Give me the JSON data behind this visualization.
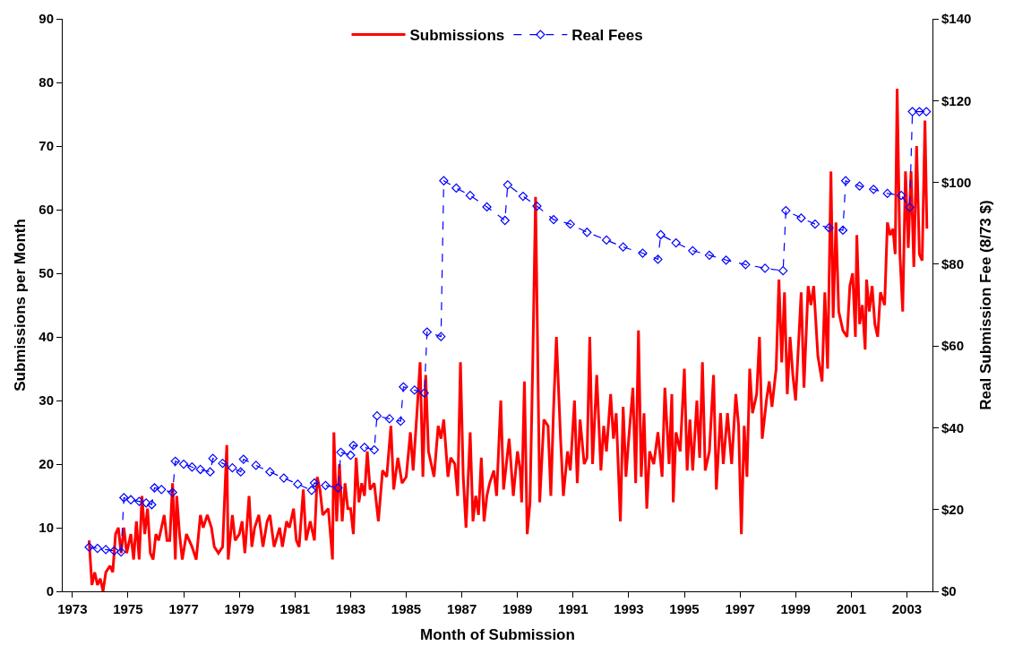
{
  "chart_data": {
    "type": "line",
    "xlabel": "Month of Submission",
    "ylabel": "Submissions per Month",
    "y2label": "Real Submission Fee (8/73 $)",
    "xlim": [
      1972.65,
      2003.92
    ],
    "xticks": [
      1973,
      1975,
      1977,
      1979,
      1981,
      1983,
      1985,
      1987,
      1989,
      1991,
      1993,
      1995,
      1997,
      1999,
      2001,
      2003
    ],
    "ylim": [
      0,
      90
    ],
    "yticks": [
      0,
      10,
      20,
      30,
      40,
      50,
      60,
      70,
      80,
      90
    ],
    "y2lim": [
      0,
      140
    ],
    "y2ticks": [
      {
        "value": 0,
        "label": "$0"
      },
      {
        "value": 20,
        "label": "$20"
      },
      {
        "value": 40,
        "label": "$40"
      },
      {
        "value": 60,
        "label": "$60"
      },
      {
        "value": 80,
        "label": "$80"
      },
      {
        "value": 100,
        "label": "$100"
      },
      {
        "value": 120,
        "label": "$120"
      },
      {
        "value": 140,
        "label": "$140"
      }
    ],
    "legend": "top",
    "series": [
      {
        "name": "Submissions",
        "color": "#ff0000",
        "line_style": "solid",
        "marker": "none",
        "axis": "y",
        "x": [
          1973.6,
          1973.7,
          1973.8,
          1973.9,
          1974.0,
          1974.1,
          1974.2,
          1974.35,
          1974.45,
          1974.55,
          1974.65,
          1974.75,
          1974.85,
          1974.95,
          1975.1,
          1975.2,
          1975.3,
          1975.4,
          1975.5,
          1975.6,
          1975.7,
          1975.8,
          1975.9,
          1976.0,
          1976.1,
          1976.3,
          1976.4,
          1976.5,
          1976.6,
          1976.7,
          1976.75,
          1976.85,
          1976.95,
          1977.1,
          1977.3,
          1977.45,
          1977.6,
          1977.7,
          1977.85,
          1978.0,
          1978.1,
          1978.25,
          1978.4,
          1978.55,
          1978.6,
          1978.75,
          1978.85,
          1979.0,
          1979.1,
          1979.2,
          1979.35,
          1979.45,
          1979.55,
          1979.7,
          1979.85,
          1980.0,
          1980.1,
          1980.25,
          1980.45,
          1980.55,
          1980.7,
          1980.8,
          1980.95,
          1981.05,
          1981.15,
          1981.3,
          1981.4,
          1981.55,
          1981.7,
          1981.8,
          1981.9,
          1982.0,
          1982.2,
          1982.35,
          1982.4,
          1982.5,
          1982.6,
          1982.7,
          1982.8,
          1982.9,
          1983.0,
          1983.1,
          1983.2,
          1983.3,
          1983.4,
          1983.5,
          1983.6,
          1983.7,
          1983.85,
          1984.0,
          1984.15,
          1984.3,
          1984.45,
          1984.55,
          1984.7,
          1984.85,
          1985.0,
          1985.15,
          1985.25,
          1985.4,
          1985.5,
          1985.6,
          1985.7,
          1985.8,
          1986.0,
          1986.15,
          1986.25,
          1986.35,
          1986.5,
          1986.6,
          1986.75,
          1986.85,
          1986.95,
          1987.05,
          1987.15,
          1987.3,
          1987.4,
          1987.5,
          1987.6,
          1987.7,
          1987.8,
          1987.9,
          1988.0,
          1988.15,
          1988.25,
          1988.4,
          1988.5,
          1988.6,
          1988.7,
          1988.85,
          1989.0,
          1989.1,
          1989.15,
          1989.25,
          1989.35,
          1989.45,
          1989.55,
          1989.65,
          1989.8,
          1989.95,
          1990.1,
          1990.2,
          1990.3,
          1990.4,
          1990.55,
          1990.65,
          1990.8,
          1990.9,
          1991.05,
          1991.15,
          1991.25,
          1991.4,
          1991.5,
          1991.6,
          1991.7,
          1991.85,
          1992.0,
          1992.1,
          1992.2,
          1992.35,
          1992.45,
          1992.55,
          1992.7,
          1992.8,
          1992.9,
          1993.0,
          1993.15,
          1993.25,
          1993.35,
          1993.45,
          1993.55,
          1993.65,
          1993.75,
          1993.9,
          1994.05,
          1994.2,
          1994.3,
          1994.45,
          1994.55,
          1994.6,
          1994.7,
          1994.85,
          1995.0,
          1995.1,
          1995.2,
          1995.3,
          1995.45,
          1995.55,
          1995.65,
          1995.75,
          1995.9,
          1996.05,
          1996.15,
          1996.3,
          1996.4,
          1996.55,
          1996.7,
          1996.85,
          1996.95,
          1997.05,
          1997.15,
          1997.25,
          1997.35,
          1997.45,
          1997.6,
          1997.7,
          1997.8,
          1997.95,
          1998.05,
          1998.15,
          1998.3,
          1998.4,
          1998.5,
          1998.6,
          1998.7,
          1998.8,
          1998.9,
          1999.0,
          1999.2,
          1999.3,
          1999.45,
          1999.55,
          1999.65,
          1999.8,
          1999.95,
          2000.05,
          2000.15,
          2000.27,
          2000.35,
          2000.45,
          2000.55,
          2000.7,
          2000.85,
          2000.95,
          2001.05,
          2001.15,
          2001.2,
          2001.3,
          2001.4,
          2001.5,
          2001.55,
          2001.65,
          2001.75,
          2001.85,
          2001.95,
          2002.05,
          2002.2,
          2002.3,
          2002.4,
          2002.5,
          2002.58,
          2002.65,
          2002.75,
          2002.85,
          2002.95,
          2003.05,
          2003.15,
          2003.25,
          2003.35,
          2003.45,
          2003.55,
          2003.65,
          2003.72
        ],
        "values": [
          8,
          1,
          3,
          1,
          2,
          0,
          3,
          4,
          3,
          9,
          10,
          6,
          10,
          6,
          9,
          5,
          11,
          5,
          15,
          9,
          13,
          6,
          5,
          9,
          8,
          12,
          8,
          8,
          17,
          5,
          15,
          9,
          5,
          9,
          7,
          5,
          12,
          10,
          12,
          10,
          7,
          6,
          7,
          23,
          5,
          12,
          8,
          9,
          11,
          6,
          15,
          7,
          10,
          12,
          7,
          11,
          12,
          7,
          10,
          7,
          11,
          10,
          13,
          8,
          7,
          16,
          8,
          11,
          8,
          18,
          16,
          12,
          13,
          5,
          25,
          11,
          20,
          11,
          17,
          13,
          13,
          9,
          21,
          14,
          17,
          15,
          22,
          16,
          17,
          11,
          19,
          18,
          26,
          16,
          21,
          17,
          18,
          25,
          19,
          29,
          36,
          18,
          34,
          22,
          18,
          26,
          24,
          27,
          18,
          21,
          20,
          15,
          36,
          18,
          10,
          25,
          11,
          15,
          12,
          21,
          11,
          15,
          17,
          19,
          15,
          30,
          16,
          20,
          24,
          15,
          22,
          19,
          14,
          33,
          9,
          14,
          36,
          62,
          14,
          27,
          26,
          15,
          29,
          40,
          24,
          15,
          22,
          19,
          30,
          17,
          27,
          20,
          21,
          40,
          20,
          34,
          19,
          26,
          22,
          31,
          24,
          28,
          11,
          29,
          18,
          24,
          32,
          17,
          41,
          18,
          28,
          13,
          22,
          20,
          25,
          18,
          32,
          20,
          31,
          14,
          25,
          22,
          35,
          19,
          27,
          19,
          30,
          21,
          36,
          19,
          22,
          34,
          16,
          28,
          20,
          28,
          20,
          31,
          26,
          9,
          26,
          18,
          35,
          28,
          31,
          40,
          24,
          30,
          33,
          29,
          35,
          49,
          36,
          47,
          31,
          40,
          34,
          30,
          47,
          32,
          48,
          45,
          48,
          37,
          33,
          47,
          35,
          66,
          43,
          58,
          44,
          41,
          40,
          48,
          50,
          40,
          56,
          42,
          45,
          38,
          49,
          44,
          48,
          42,
          40,
          47,
          45,
          58,
          56,
          57,
          53,
          79,
          53,
          44,
          66,
          54,
          66,
          51,
          70,
          53,
          52,
          74,
          57
        ]
      },
      {
        "name": "Real Fees",
        "color": "#0000ff",
        "line_style": "dashed",
        "marker": "diamond",
        "axis": "y2",
        "x": [
          1973.6,
          1973.9,
          1974.2,
          1974.5,
          1974.75,
          1974.85,
          1975.1,
          1975.4,
          1975.65,
          1975.85,
          1975.95,
          1976.2,
          1976.6,
          1976.7,
          1977.0,
          1977.3,
          1977.6,
          1977.95,
          1978.05,
          1978.4,
          1978.75,
          1979.05,
          1979.15,
          1979.6,
          1980.1,
          1980.6,
          1981.1,
          1981.6,
          1981.7,
          1982.1,
          1982.55,
          1982.65,
          1983.0,
          1983.1,
          1983.5,
          1983.85,
          1983.95,
          1984.4,
          1984.8,
          1984.9,
          1985.3,
          1985.65,
          1985.75,
          1986.25,
          1986.35,
          1986.8,
          1987.3,
          1987.9,
          1988.55,
          1988.65,
          1989.2,
          1989.7,
          1990.3,
          1990.9,
          1991.5,
          1992.2,
          1992.8,
          1993.5,
          1994.05,
          1994.15,
          1994.7,
          1995.3,
          1995.9,
          1996.5,
          1997.2,
          1997.9,
          1998.55,
          1998.65,
          1999.2,
          1999.7,
          2000.2,
          2000.7,
          2000.8,
          2001.3,
          2001.8,
          2002.3,
          2002.8,
          2003.1,
          2003.2,
          2003.45,
          2003.7
        ],
        "values": [
          10.8,
          10.5,
          10.2,
          9.9,
          9.6,
          22.9,
          22.4,
          22.0,
          21.6,
          21.2,
          25.3,
          24.9,
          24.2,
          31.8,
          31.1,
          30.4,
          29.8,
          29.2,
          32.5,
          31.3,
          30.2,
          29.2,
          32.3,
          30.8,
          29.2,
          27.7,
          26.2,
          24.7,
          26.5,
          25.9,
          25.3,
          34.0,
          33.3,
          35.7,
          35.2,
          34.6,
          42.9,
          42.2,
          41.6,
          50.0,
          49.2,
          48.5,
          63.4,
          62.3,
          100.4,
          98.6,
          96.8,
          94.0,
          90.7,
          99.4,
          96.6,
          94.2,
          90.9,
          89.8,
          87.8,
          85.9,
          84.2,
          82.7,
          81.2,
          87.2,
          85.2,
          83.3,
          82.2,
          81.0,
          79.9,
          79.0,
          78.4,
          93.1,
          91.3,
          89.8,
          88.9,
          88.3,
          100.4,
          99.1,
          98.3,
          97.3,
          96.8,
          93.9,
          117.3,
          117.3,
          117.3
        ]
      }
    ]
  }
}
